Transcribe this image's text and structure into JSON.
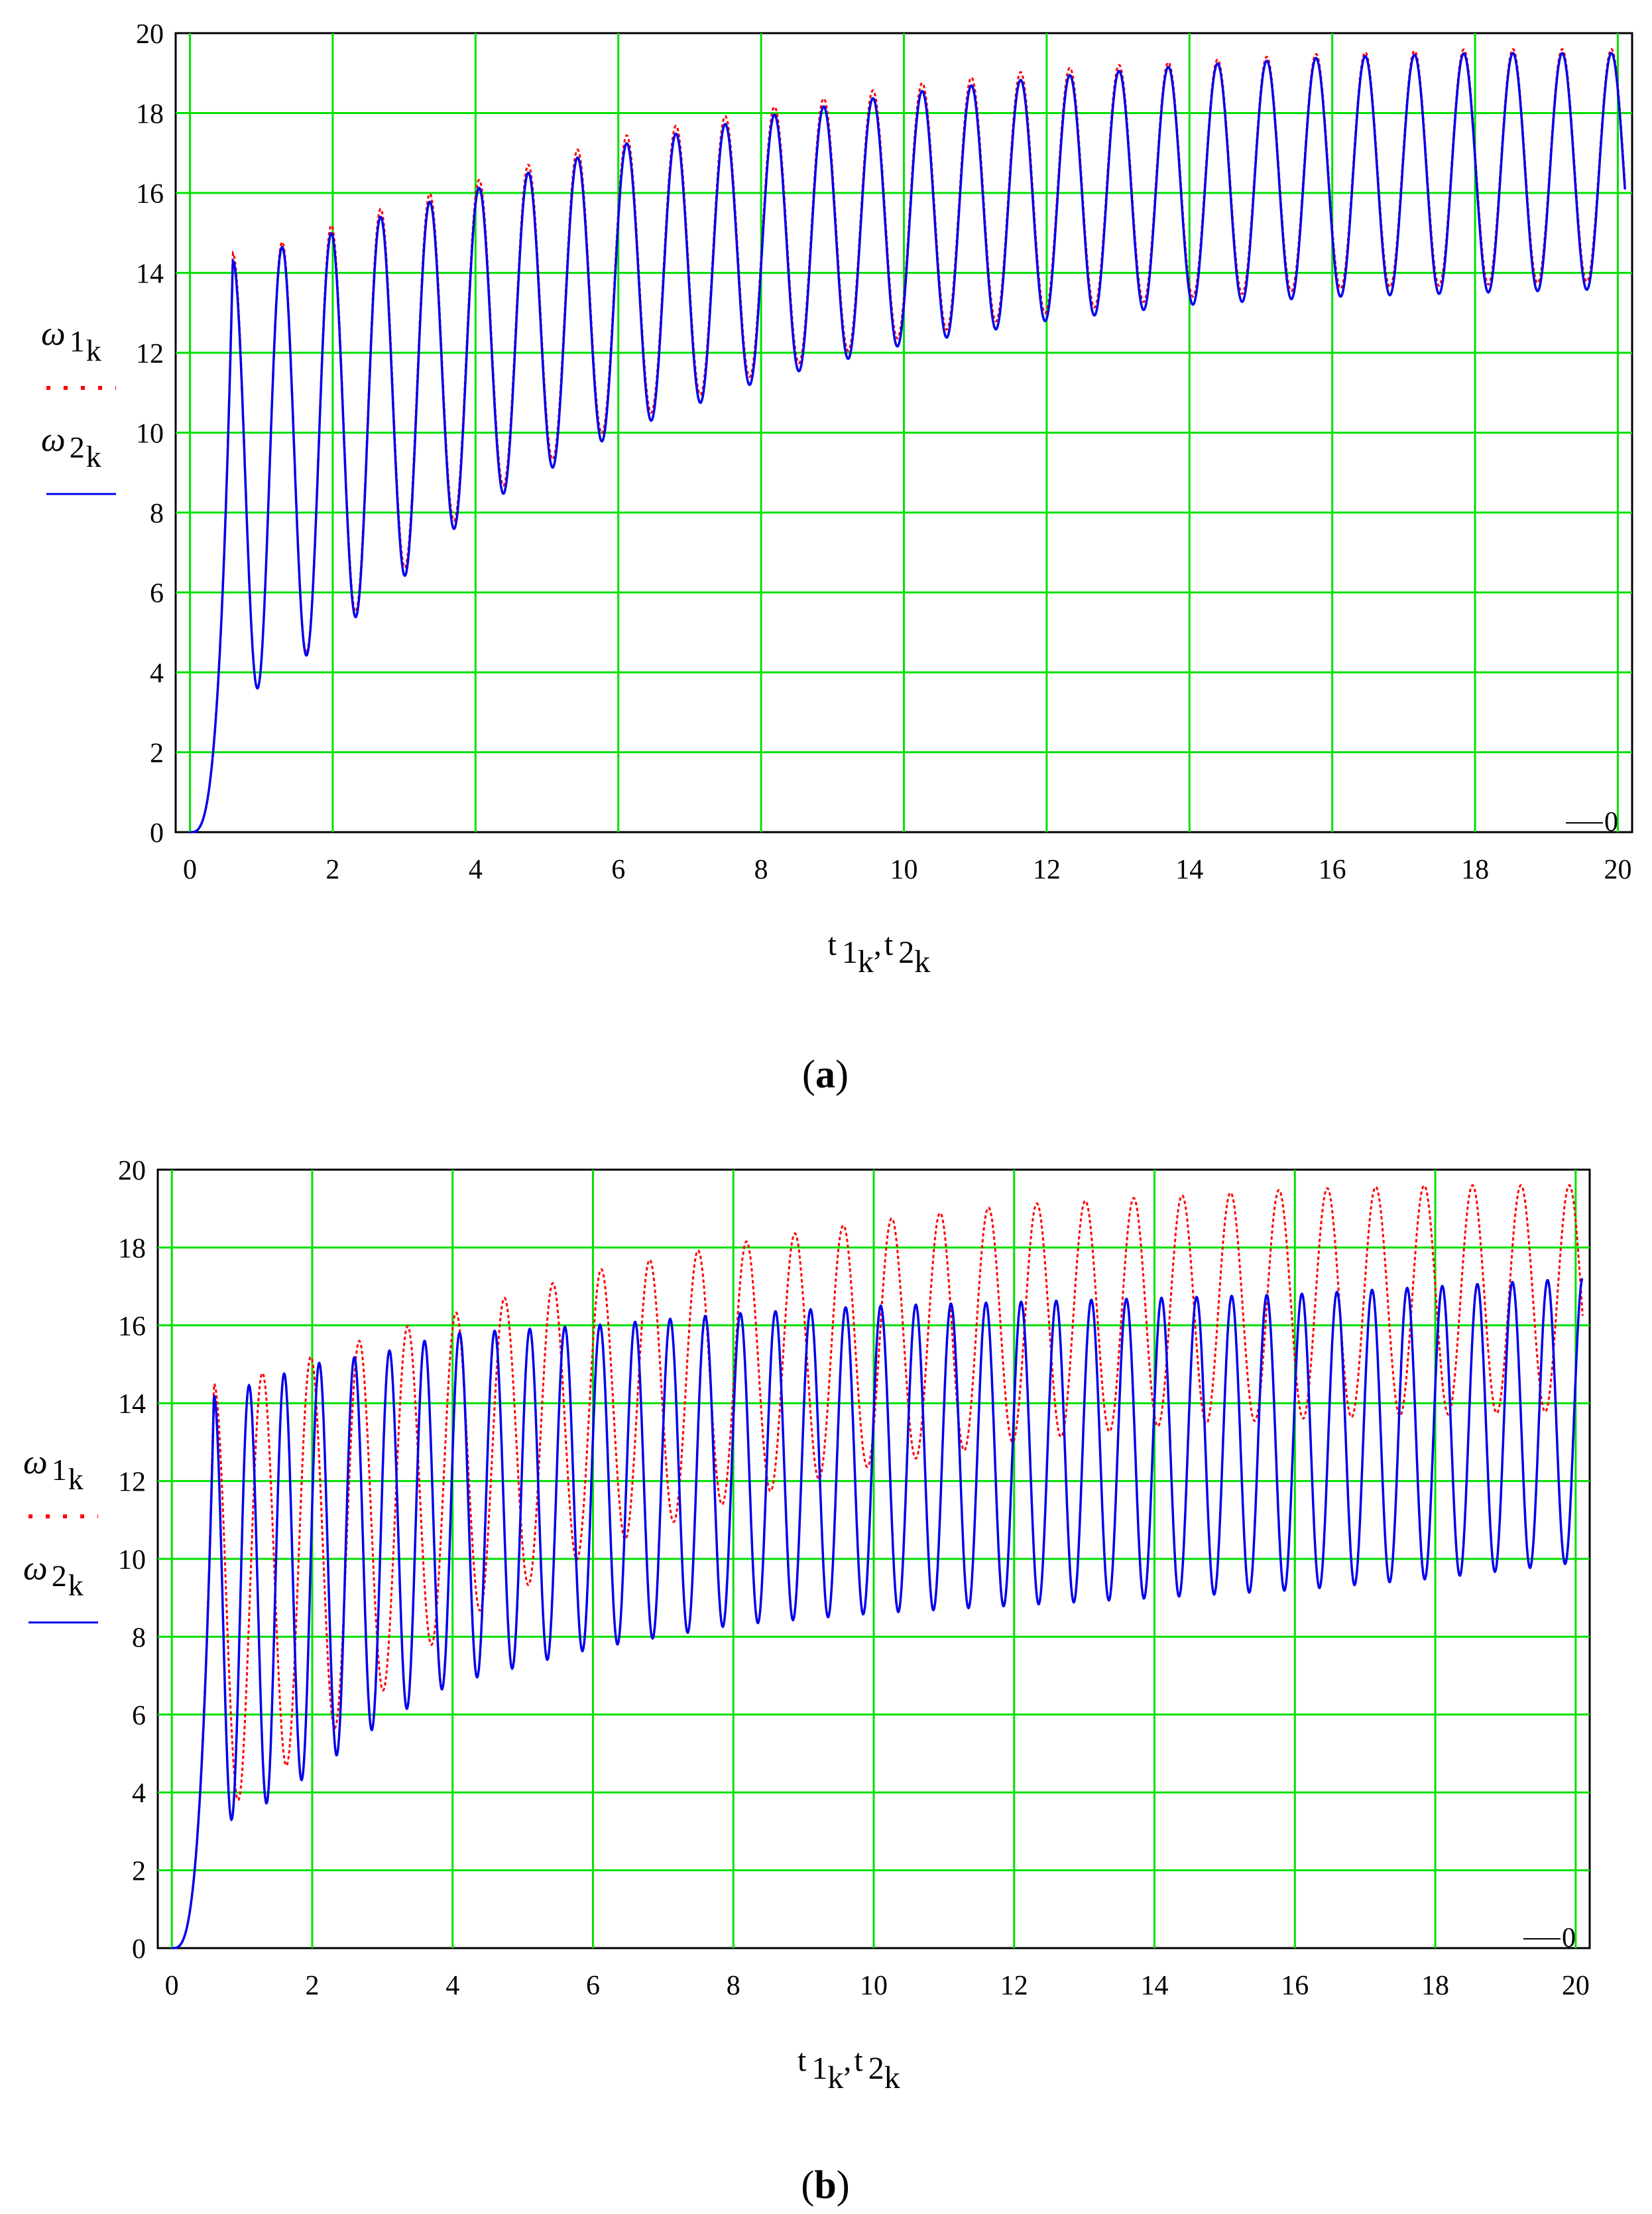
{
  "chart_data": [
    {
      "type": "line",
      "panel_label": "a",
      "xlim": [
        -0.2,
        20.2
      ],
      "ylim": [
        0,
        20
      ],
      "x_ticks": [
        "0",
        "2",
        "4",
        "6",
        "8",
        "10",
        "12",
        "14",
        "16",
        "18",
        "20"
      ],
      "y_ticks": [
        "0",
        "2",
        "4",
        "6",
        "8",
        "10",
        "12",
        "14",
        "16",
        "18",
        "20"
      ],
      "xlabel": {
        "base1": "t",
        "sub1": "1",
        "subsub1": "k",
        "sep": ",",
        "base2": "t",
        "sub2": "2",
        "subsub2": "k"
      },
      "ylabel_1": {
        "base": "ω",
        "sub": "1",
        "subsub": "k"
      },
      "ylabel_2": {
        "base": "ω",
        "sub": "2",
        "subsub": "k"
      },
      "corner_marker": "0",
      "grid": true,
      "grid_color": "#00e000",
      "series": [
        {
          "name": "ω1k",
          "style": "dotted",
          "color": "#ff0000",
          "envelope_t": [
            0,
            0.6,
            1,
            2,
            3,
            4,
            6,
            8,
            10,
            12,
            14,
            16,
            18,
            20
          ],
          "peaks": [
            0,
            14.5,
            14.6,
            15.2,
            15.8,
            16.3,
            17.4,
            18.1,
            18.7,
            19.1,
            19.3,
            19.5,
            19.6,
            19.6
          ],
          "troughs": [
            0,
            3.6,
            3.6,
            5.0,
            6.6,
            8.3,
            10.2,
            11.5,
            12.4,
            13.0,
            13.4,
            13.6,
            13.7,
            13.8
          ],
          "oscillations_per_unit": 1.45
        },
        {
          "name": "ω2k",
          "style": "solid",
          "color": "#0000ee",
          "envelope_t": [
            0,
            0.6,
            1,
            2,
            3,
            4,
            6,
            8,
            10,
            12,
            14,
            16,
            18,
            20
          ],
          "peaks": [
            0,
            14.3,
            14.5,
            15.0,
            15.6,
            16.1,
            17.2,
            17.9,
            18.5,
            18.9,
            19.2,
            19.4,
            19.5,
            19.5
          ],
          "troughs": [
            0,
            3.6,
            3.6,
            4.9,
            6.4,
            8.1,
            10.0,
            11.3,
            12.2,
            12.8,
            13.2,
            13.4,
            13.5,
            13.6
          ],
          "oscillations_per_unit": 1.45
        }
      ]
    },
    {
      "type": "line",
      "panel_label": "b",
      "xlim": [
        -0.2,
        20.2
      ],
      "ylim": [
        0,
        20
      ],
      "x_ticks": [
        "0",
        "2",
        "4",
        "6",
        "8",
        "10",
        "12",
        "14",
        "16",
        "18",
        "20"
      ],
      "y_ticks": [
        "0",
        "2",
        "4",
        "6",
        "8",
        "10",
        "12",
        "14",
        "16",
        "18",
        "20"
      ],
      "xlabel": {
        "base1": "t",
        "sub1": "1",
        "subsub1": "k",
        "sep": ",",
        "base2": "t",
        "sub2": "2",
        "subsub2": "k"
      },
      "ylabel_1": {
        "base": "ω",
        "sub": "1",
        "subsub": "k"
      },
      "ylabel_2": {
        "base": "ω",
        "sub": "2",
        "subsub": "k"
      },
      "corner_marker": "0",
      "grid": true,
      "grid_color": "#00e000",
      "series": [
        {
          "name": "ω1k",
          "style": "dotted",
          "color": "#ff0000",
          "envelope_t": [
            0,
            0.6,
            1,
            2,
            3,
            4,
            6,
            8,
            10,
            12,
            14,
            16,
            18,
            20
          ],
          "peaks": [
            0,
            14.5,
            14.6,
            15.2,
            15.8,
            16.3,
            17.4,
            18.1,
            18.7,
            19.1,
            19.3,
            19.5,
            19.6,
            19.6
          ],
          "troughs": [
            0,
            3.8,
            3.8,
            5.2,
            6.6,
            8.3,
            10.2,
            11.5,
            12.4,
            13.0,
            13.4,
            13.6,
            13.7,
            13.8
          ],
          "oscillations_per_unit": 1.45
        },
        {
          "name": "ω2k",
          "style": "solid",
          "color": "#0000ee",
          "envelope_t": [
            0,
            0.6,
            1,
            2,
            3,
            4,
            6,
            8,
            10,
            12,
            14,
            16,
            18,
            20
          ],
          "peaks": [
            0,
            14.2,
            14.4,
            15.0,
            15.3,
            15.8,
            16.0,
            16.3,
            16.5,
            16.6,
            16.7,
            16.8,
            17.0,
            17.2
          ],
          "troughs": [
            0,
            3.3,
            3.3,
            4.5,
            5.8,
            6.8,
            7.7,
            8.3,
            8.6,
            8.8,
            9.0,
            9.2,
            9.5,
            9.9
          ],
          "oscillations_per_unit": 2.0
        }
      ]
    }
  ]
}
